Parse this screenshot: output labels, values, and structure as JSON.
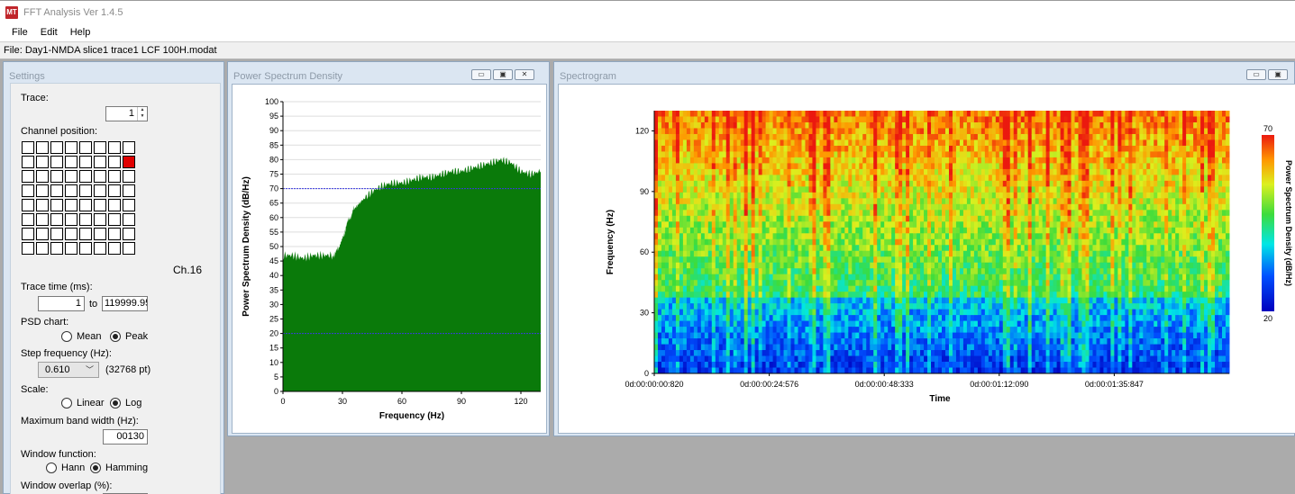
{
  "app": {
    "title": "FFT Analysis Ver 1.4.5",
    "icon": "fft-app-icon"
  },
  "menu": [
    "File",
    "Edit",
    "Help"
  ],
  "file_label": "File: Day1-NMDA slice1 trace1 LCF 100H.modat",
  "settings": {
    "title": "Settings",
    "trace_label": "Trace:",
    "trace_value": "1",
    "channel_label": "Channel position:",
    "grid": {
      "rows": 8,
      "cols": 8,
      "active_row": 1,
      "active_col": 7
    },
    "channel_name": "Ch.16",
    "trace_time_label": "Trace time (ms):",
    "trace_time_from": "1",
    "trace_time_to_word": "to",
    "trace_time_to": "119999.95",
    "psd_chart_label": "PSD chart:",
    "psd_options": [
      "Mean",
      "Peak"
    ],
    "psd_selected": "Peak",
    "step_label": "Step frequency (Hz):",
    "step_value": "0.610",
    "step_points": "(32768 pt)",
    "scale_label": "Scale:",
    "scale_options": [
      "Linear",
      "Log"
    ],
    "scale_selected": "Log",
    "max_band_label": "Maximum band width (Hz):",
    "max_band_value": "00130",
    "window_fn_label": "Window function:",
    "window_options": [
      "Hann",
      "Hamming"
    ],
    "window_selected": "Hamming",
    "overlap_label": "Window overlap (%):"
  },
  "psd_panel": {
    "title": "Power Spectrum Density"
  },
  "spectrogram_panel": {
    "title": "Spectrogram"
  },
  "chart_data": [
    {
      "type": "area",
      "xlabel": "Frequency (Hz)",
      "ylabel": "Power Spectrum Density (dB/Hz)",
      "xlim": [
        0,
        130
      ],
      "ylim": [
        0,
        100
      ],
      "x_ticks": [
        0,
        30,
        60,
        90,
        120
      ],
      "y_ticks": [
        0,
        5,
        10,
        15,
        20,
        25,
        30,
        35,
        40,
        45,
        50,
        55,
        60,
        65,
        70,
        75,
        80,
        85,
        90,
        95,
        100
      ],
      "reference_lines": [
        70,
        20
      ],
      "fill_color": "#0a7a0a",
      "x": [
        0,
        5,
        10,
        15,
        20,
        25,
        28,
        30,
        33,
        36,
        40,
        45,
        50,
        55,
        60,
        65,
        70,
        75,
        80,
        85,
        90,
        95,
        100,
        105,
        110,
        115,
        120,
        125,
        130
      ],
      "y": [
        47,
        47,
        46,
        47,
        47,
        47,
        49,
        53,
        59,
        63,
        66,
        69,
        71,
        72,
        72,
        73,
        74,
        74,
        75,
        76,
        76,
        77,
        78,
        79,
        80,
        79,
        76,
        75,
        76
      ]
    },
    {
      "type": "heatmap",
      "xlabel": "Time",
      "ylabel": "Frequency (Hz)",
      "x_tick_labels": [
        "0d:00:00:00:820",
        "0d:00:00:24:576",
        "0d:00:00:48:333",
        "0d:00:01:12:090",
        "0d:00:01:35:847"
      ],
      "y_ticks": [
        0,
        30,
        60,
        90,
        120
      ],
      "ylim": [
        0,
        130
      ],
      "colorbar": {
        "label": "Power Spectrum Density (dB/Hz)",
        "min": 20,
        "max": 70
      }
    }
  ]
}
